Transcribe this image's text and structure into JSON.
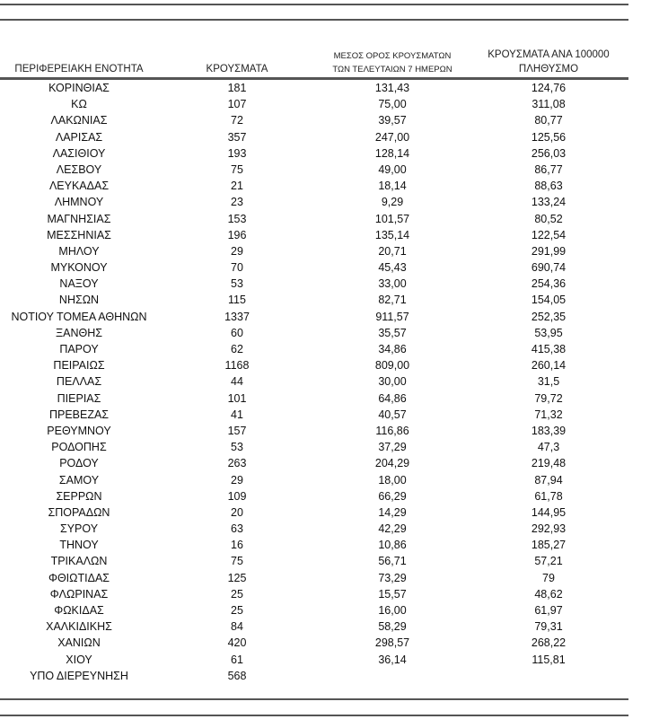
{
  "table": {
    "headers": {
      "region": "ΠΕΡΙΦΕΡΕΙΑΚΗ ΕΝΟΤΗΤΑ",
      "cases": "ΚΡΟΥΣΜΑΤΑ",
      "avg7_line1": "ΜΕΣΟΣ ΟΡΟΣ ΚΡΟΥΣΜΑΤΩΝ",
      "avg7_line2": "ΤΩΝ ΤΕΛΕΥΤΑΙΩΝ 7 ΗΜΕΡΩΝ",
      "per100k_line1": "ΚΡΟΥΣΜΑΤΑ ΑΝΑ 100000",
      "per100k_line2": "ΠΛΗΘΥΣΜΟ"
    },
    "rows": [
      [
        "ΚΟΡΙΝΘΙΑΣ",
        "181",
        "131,43",
        "124,76"
      ],
      [
        "ΚΩ",
        "107",
        "75,00",
        "311,08"
      ],
      [
        "ΛΑΚΩΝΙΑΣ",
        "72",
        "39,57",
        "80,77"
      ],
      [
        "ΛΑΡΙΣΑΣ",
        "357",
        "247,00",
        "125,56"
      ],
      [
        "ΛΑΣΙΘΙΟΥ",
        "193",
        "128,14",
        "256,03"
      ],
      [
        "ΛΕΣΒΟΥ",
        "75",
        "49,00",
        "86,77"
      ],
      [
        "ΛΕΥΚΑΔΑΣ",
        "21",
        "18,14",
        "88,63"
      ],
      [
        "ΛΗΜΝΟΥ",
        "23",
        "9,29",
        "133,24"
      ],
      [
        "ΜΑΓΝΗΣΙΑΣ",
        "153",
        "101,57",
        "80,52"
      ],
      [
        "ΜΕΣΣΗΝΙΑΣ",
        "196",
        "135,14",
        "122,54"
      ],
      [
        "ΜΗΛΟΥ",
        "29",
        "20,71",
        "291,99"
      ],
      [
        "ΜΥΚΟΝΟΥ",
        "70",
        "45,43",
        "690,74"
      ],
      [
        "ΝΑΞΟΥ",
        "53",
        "33,00",
        "254,36"
      ],
      [
        "ΝΗΣΩΝ",
        "115",
        "82,71",
        "154,05"
      ],
      [
        "ΝΟΤΙΟΥ ΤΟΜΕΑ ΑΘΗΝΩΝ",
        "1337",
        "911,57",
        "252,35"
      ],
      [
        "ΞΑΝΘΗΣ",
        "60",
        "35,57",
        "53,95"
      ],
      [
        "ΠΑΡΟΥ",
        "62",
        "34,86",
        "415,38"
      ],
      [
        "ΠΕΙΡΑΙΩΣ",
        "1168",
        "809,00",
        "260,14"
      ],
      [
        "ΠΕΛΛΑΣ",
        "44",
        "30,00",
        "31,5"
      ],
      [
        "ΠΙΕΡΙΑΣ",
        "101",
        "64,86",
        "79,72"
      ],
      [
        "ΠΡΕΒΕΖΑΣ",
        "41",
        "40,57",
        "71,32"
      ],
      [
        "ΡΕΘΥΜΝΟΥ",
        "157",
        "116,86",
        "183,39"
      ],
      [
        "ΡΟΔΟΠΗΣ",
        "53",
        "37,29",
        "47,3"
      ],
      [
        "ΡΟΔΟΥ",
        "263",
        "204,29",
        "219,48"
      ],
      [
        "ΣΑΜΟΥ",
        "29",
        "18,00",
        "87,94"
      ],
      [
        "ΣΕΡΡΩΝ",
        "109",
        "66,29",
        "61,78"
      ],
      [
        "ΣΠΟΡΑΔΩΝ",
        "20",
        "14,29",
        "144,95"
      ],
      [
        "ΣΥΡΟΥ",
        "63",
        "42,29",
        "292,93"
      ],
      [
        "ΤΗΝΟΥ",
        "16",
        "10,86",
        "185,27"
      ],
      [
        "ΤΡΙΚΑΛΩΝ",
        "75",
        "56,71",
        "57,21"
      ],
      [
        "ΦΘΙΩΤΙΔΑΣ",
        "125",
        "73,29",
        "79"
      ],
      [
        "ΦΛΩΡΙΝΑΣ",
        "25",
        "15,57",
        "48,62"
      ],
      [
        "ΦΩΚΙΔΑΣ",
        "25",
        "16,00",
        "61,97"
      ],
      [
        "ΧΑΛΚΙΔΙΚΗΣ",
        "84",
        "58,29",
        "79,31"
      ],
      [
        "ΧΑΝΙΩΝ",
        "420",
        "298,57",
        "268,22"
      ],
      [
        "ΧΙΟΥ",
        "61",
        "36,14",
        "115,81"
      ],
      [
        "ΥΠΟ ΔΙΕΡΕΥΝΗΣΗ",
        "568",
        "",
        ""
      ]
    ]
  }
}
